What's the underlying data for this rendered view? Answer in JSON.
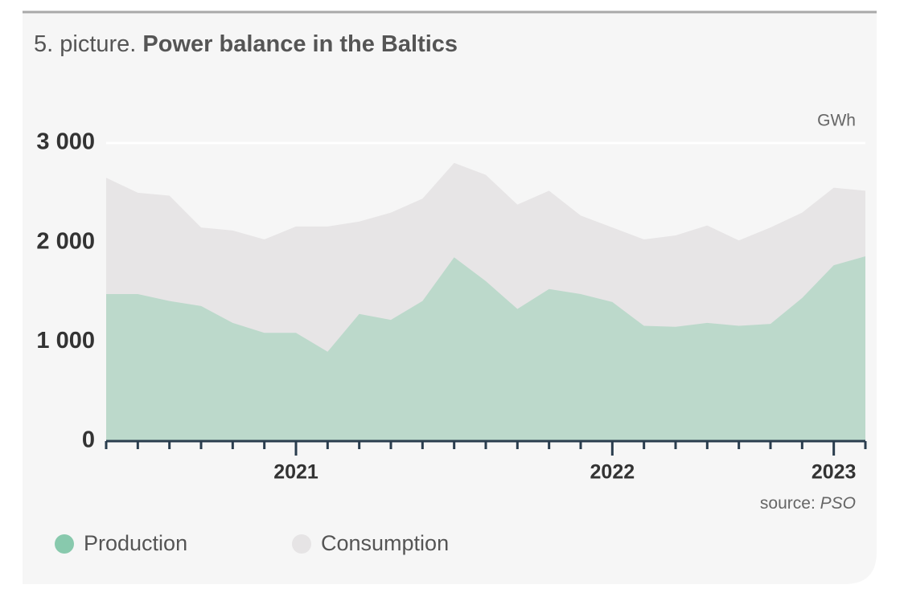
{
  "chart_data": {
    "type": "area",
    "figure_label": "5. picture.",
    "title": "Power balance in the Baltics",
    "unit": "GWh",
    "source_label": "source:",
    "source": "PSO",
    "categories": [
      null,
      null,
      null,
      null,
      null,
      null,
      "2021",
      null,
      null,
      null,
      null,
      null,
      null,
      null,
      null,
      null,
      "2022",
      null,
      null,
      null,
      null,
      null,
      null,
      "2023",
      null
    ],
    "series": [
      {
        "name": "Consumption",
        "color": "#e7e5e6",
        "legend_color": "#e6e4e5",
        "values": [
          2650,
          2500,
          2470,
          2150,
          2120,
          2030,
          2160,
          2160,
          2210,
          2300,
          2440,
          2800,
          2680,
          2380,
          2520,
          2270,
          2150,
          2030,
          2070,
          2170,
          2020,
          2150,
          2300,
          2550,
          2520
        ]
      },
      {
        "name": "Production",
        "color": "#bcd9cb",
        "legend_color": "#88c9ad",
        "values": [
          1480,
          1480,
          1410,
          1360,
          1190,
          1090,
          1090,
          900,
          1280,
          1220,
          1410,
          1850,
          1610,
          1330,
          1530,
          1480,
          1400,
          1160,
          1150,
          1190,
          1160,
          1180,
          1440,
          1770,
          1860
        ]
      }
    ],
    "ylim": [
      0,
      3000
    ],
    "yticks": [
      {
        "value": 0,
        "label": "0"
      },
      {
        "value": 1000,
        "label": "1 000"
      },
      {
        "value": 2000,
        "label": "2 000"
      },
      {
        "value": 3000,
        "label": "3 000"
      }
    ],
    "grid": true
  }
}
